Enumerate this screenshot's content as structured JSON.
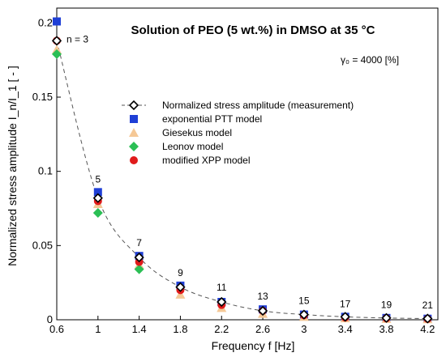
{
  "chart_data": {
    "type": "scatter",
    "title": "Solution of PEO (5 wt.%) in DMSO at 35 °C",
    "annotation": "γ₀ = 4000 [%]",
    "xlabel": "Frequency f [Hz]",
    "ylabel": "Normalized stress amplitude I_n/I_1 [ - ]",
    "xlim": [
      0.6,
      4.3
    ],
    "ylim": [
      0,
      0.21
    ],
    "xticks": [
      0.6,
      1,
      1.4,
      1.8,
      2.2,
      2.6,
      3,
      3.4,
      3.8,
      4.2
    ],
    "xtick_labels": [
      "0.6",
      "1",
      "1.4",
      "1.8",
      "2.2",
      "2.6",
      "3",
      "3.4",
      "3.8",
      "4.2"
    ],
    "yticks": [
      0,
      0.05,
      0.1,
      0.15,
      0.2
    ],
    "ytick_labels": [
      "0",
      "0.05",
      "0.1",
      "0.15",
      "0.2"
    ],
    "grid": false,
    "legend_position": "center-right",
    "harmonic_labels": [
      {
        "x": 0.6,
        "y": 0.188,
        "text": "n = 3"
      },
      {
        "x": 1.0,
        "y": 0.086,
        "text": "5"
      },
      {
        "x": 1.4,
        "y": 0.043,
        "text": "7"
      },
      {
        "x": 1.8,
        "y": 0.023,
        "text": "9"
      },
      {
        "x": 2.2,
        "y": 0.013,
        "text": "11"
      },
      {
        "x": 2.6,
        "y": 0.007,
        "text": "13"
      },
      {
        "x": 3.0,
        "y": 0.004,
        "text": "15"
      },
      {
        "x": 3.4,
        "y": 0.002,
        "text": "17"
      },
      {
        "x": 3.8,
        "y": 0.0015,
        "text": "19"
      },
      {
        "x": 4.2,
        "y": 0.001,
        "text": "21"
      }
    ],
    "series": [
      {
        "name": "Normalized stress amplitude (measurement)",
        "marker": "diamond-open",
        "color": "#000000",
        "line": "dashed",
        "x": [
          0.6,
          1.0,
          1.4,
          1.8,
          2.2,
          2.6,
          3.0,
          3.4,
          3.8,
          4.2
        ],
        "y": [
          0.188,
          0.082,
          0.042,
          0.022,
          0.012,
          0.006,
          0.0035,
          0.002,
          0.0012,
          0.0008
        ]
      },
      {
        "name": "exponential PTT model",
        "marker": "square",
        "color": "#1f3fd6",
        "x": [
          0.6,
          1.0,
          1.4,
          1.8,
          2.2,
          2.6,
          3.0,
          3.4,
          3.8,
          4.2
        ],
        "y": [
          0.201,
          0.086,
          0.043,
          0.023,
          0.012,
          0.007,
          0.0035,
          0.002,
          0.0012,
          0.0007
        ]
      },
      {
        "name": "Giesekus model",
        "marker": "triangle",
        "color": "#f5c896",
        "x": [
          0.6,
          1.0,
          1.4,
          1.8,
          2.2,
          2.6,
          3.0,
          3.4,
          3.8,
          4.2
        ],
        "y": [
          0.182,
          0.078,
          0.037,
          0.017,
          0.008,
          0.004,
          0.002,
          0.001,
          0.0006,
          0.0004
        ]
      },
      {
        "name": "Leonov model",
        "marker": "diamond",
        "color": "#2bbf55",
        "x": [
          0.6,
          1.0,
          1.4
        ],
        "y": [
          0.179,
          0.072,
          0.034
        ]
      },
      {
        "name": "modified XPP model",
        "marker": "circle",
        "color": "#e01b1b",
        "x": [
          0.6,
          1.0,
          1.4,
          1.8,
          2.2,
          2.6,
          3.0,
          3.4,
          3.8,
          4.2
        ],
        "y": [
          0.188,
          0.08,
          0.039,
          0.02,
          0.01,
          0.006,
          0.003,
          0.0015,
          0.001,
          0.0006
        ]
      }
    ]
  }
}
